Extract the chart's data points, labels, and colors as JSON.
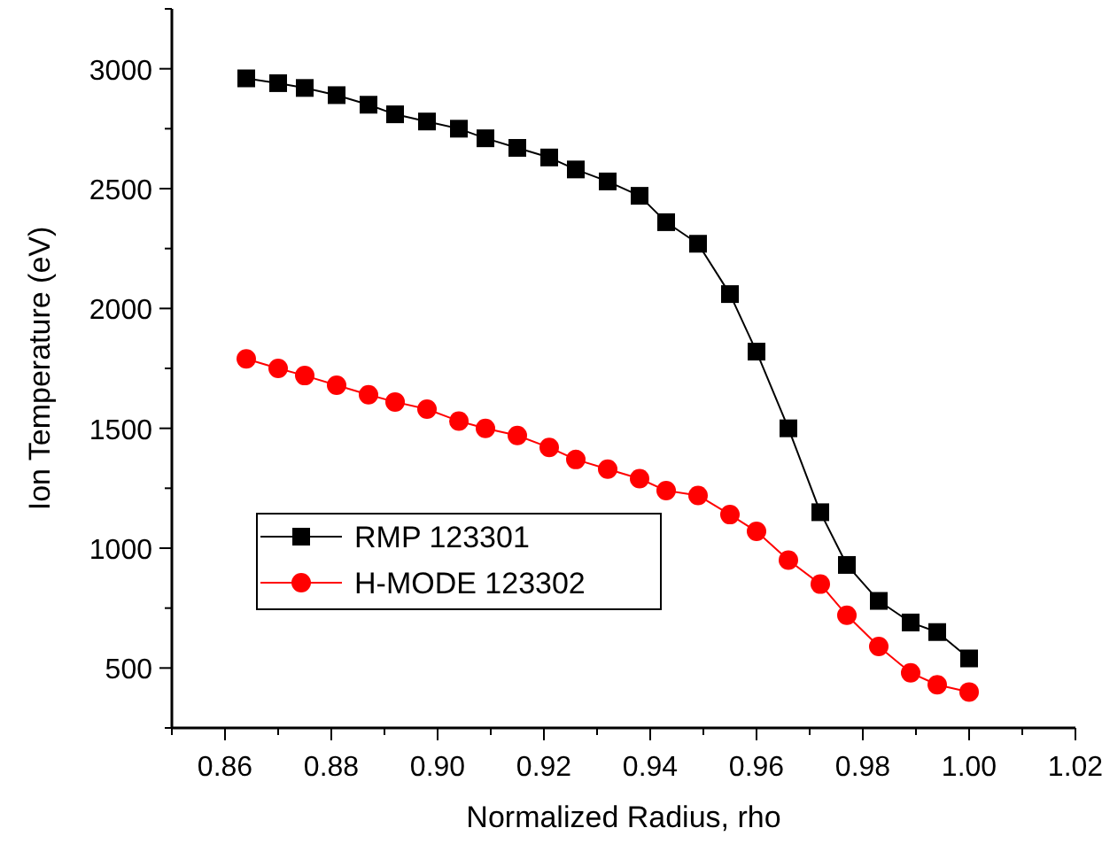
{
  "chart_data": {
    "type": "line",
    "xlabel": "Normalized Radius, rho",
    "ylabel": "Ion Temperature (eV)",
    "x": [
      0.864,
      0.87,
      0.875,
      0.881,
      0.887,
      0.892,
      0.898,
      0.904,
      0.909,
      0.915,
      0.921,
      0.926,
      0.932,
      0.938,
      0.943,
      0.949,
      0.955,
      0.96,
      0.966,
      0.972,
      0.977,
      0.983,
      0.989,
      0.994,
      1.0
    ],
    "series": [
      {
        "name": "RMP 123301",
        "color": "#000000",
        "marker": "square",
        "values": [
          2960,
          2940,
          2920,
          2890,
          2850,
          2810,
          2780,
          2750,
          2710,
          2670,
          2630,
          2580,
          2530,
          2470,
          2360,
          2270,
          2060,
          1820,
          1500,
          1150,
          930,
          780,
          690,
          650,
          540
        ]
      },
      {
        "name": "H-MODE 123302",
        "color": "#ff0000",
        "marker": "circle",
        "values": [
          1790,
          1750,
          1720,
          1680,
          1640,
          1610,
          1580,
          1530,
          1500,
          1470,
          1420,
          1370,
          1330,
          1290,
          1240,
          1220,
          1140,
          1070,
          950,
          850,
          720,
          590,
          480,
          430,
          400
        ]
      }
    ],
    "xlim": [
      0.85,
      1.02
    ],
    "xticks": [
      {
        "value": 0.86,
        "label": "0.86"
      },
      {
        "value": 0.88,
        "label": "0.88"
      },
      {
        "value": 0.9,
        "label": "0.90"
      },
      {
        "value": 0.92,
        "label": "0.92"
      },
      {
        "value": 0.94,
        "label": "0.94"
      },
      {
        "value": 0.96,
        "label": "0.96"
      },
      {
        "value": 0.98,
        "label": "0.98"
      },
      {
        "value": 1.0,
        "label": "1.00"
      },
      {
        "value": 1.02,
        "label": "1.02"
      }
    ],
    "ylim": [
      250,
      3250
    ],
    "yticks": [
      500,
      1000,
      1500,
      2000,
      2500,
      3000
    ],
    "grid": false,
    "legend": "left",
    "line_style": "solid"
  }
}
